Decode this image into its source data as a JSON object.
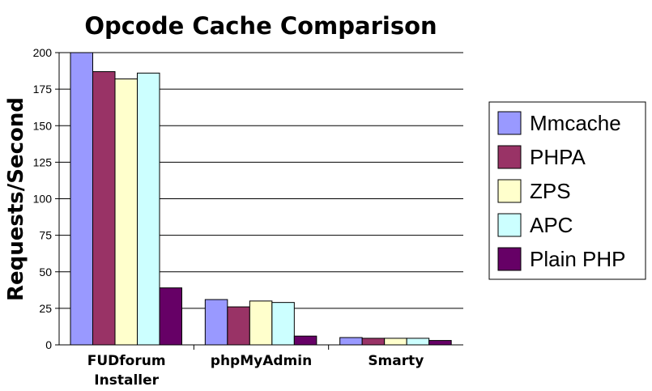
{
  "chart_data": {
    "type": "bar",
    "title": "Opcode Cache Comparison",
    "xlabel": "",
    "ylabel": "Requests/Second",
    "ylim": [
      0,
      200
    ],
    "yticks": [
      0,
      25,
      50,
      75,
      100,
      125,
      150,
      175,
      200
    ],
    "grid": true,
    "legend_position": "right",
    "categories": [
      [
        "FUDforum",
        "Installer"
      ],
      [
        "phpMyAdmin"
      ],
      [
        "Smarty"
      ]
    ],
    "series": [
      {
        "name": "Mmcache",
        "color": "#9999ff",
        "values": [
          200,
          31,
          5
        ]
      },
      {
        "name": "PHPA",
        "color": "#993366",
        "values": [
          187,
          26,
          4.5
        ]
      },
      {
        "name": "ZPS",
        "color": "#ffffcc",
        "values": [
          182,
          30,
          4.5
        ]
      },
      {
        "name": "APC",
        "color": "#ccffff",
        "values": [
          186,
          29,
          4.5
        ]
      },
      {
        "name": "Plain PHP",
        "color": "#660066",
        "values": [
          39,
          6,
          3
        ]
      }
    ]
  }
}
